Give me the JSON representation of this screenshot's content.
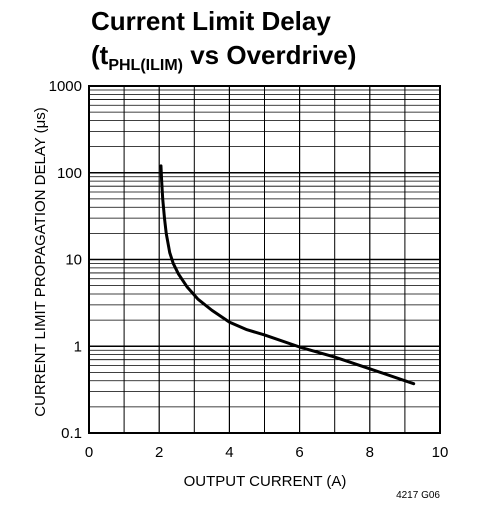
{
  "chart_data": {
    "type": "line",
    "title_line1": "Current Limit Delay",
    "title_line2_open": "(t",
    "title_line2_sub": "PHL(ILIM)",
    "title_line2_rest": " vs Overdrive)",
    "xlabel": "OUTPUT CURRENT (A)",
    "ylabel": "CURRENT LIMIT PROPAGATION DELAY (μs)",
    "xlim": [
      0,
      10
    ],
    "ylim": [
      0.1,
      1000
    ],
    "yscale": "log",
    "grid": true,
    "x_ticks": [
      "0",
      "2",
      "4",
      "6",
      "8",
      "10"
    ],
    "y_ticks": [
      "0.1",
      "1",
      "10",
      "100",
      "1000"
    ],
    "series": [
      {
        "x": [
          2.05,
          2.07,
          2.1,
          2.15,
          2.2,
          2.3,
          2.4,
          2.55,
          2.8,
          3.1,
          3.5,
          4.0,
          4.5,
          5.0,
          6.0,
          7.0,
          8.0,
          9.25
        ],
        "y": [
          120,
          80,
          50,
          30,
          20,
          12,
          9,
          6.8,
          4.8,
          3.5,
          2.6,
          1.9,
          1.55,
          1.35,
          0.98,
          0.75,
          0.55,
          0.37
        ]
      }
    ],
    "figure_code": "4217 G06"
  }
}
